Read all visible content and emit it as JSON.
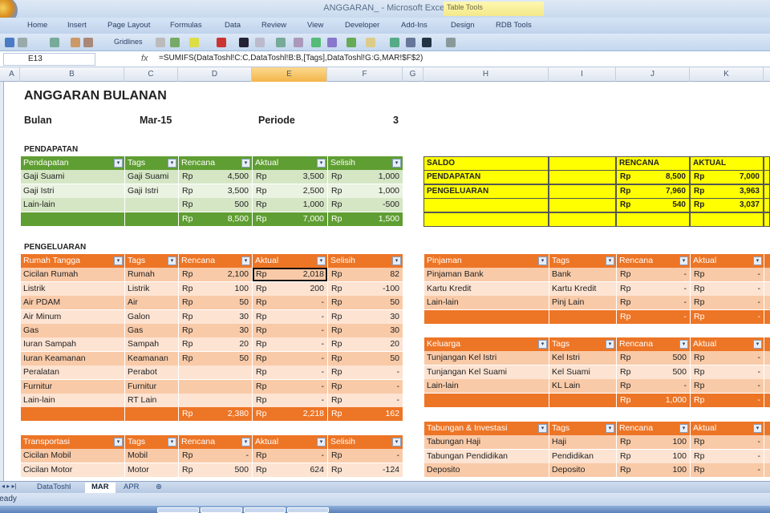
{
  "window": {
    "title": "ANGGARAN_ - Microsoft Excel",
    "contextual_tab": "Table Tools"
  },
  "ribbon_tabs": [
    "Home",
    "Insert",
    "Page Layout",
    "Formulas",
    "Data",
    "Review",
    "View",
    "Developer",
    "Add-Ins",
    "Design",
    "RDB Tools"
  ],
  "toolbar": {
    "gridlines_label": "Gridlines"
  },
  "formula_bar": {
    "name_box": "E13",
    "fx": "fx",
    "formula": "=SUMIFS(DataToshl!C:C,DataToshl!B:B,[Tags],DataToshl!G:G,MAR!$F$2)"
  },
  "columns": [
    "A",
    "B",
    "C",
    "D",
    "E",
    "F",
    "G",
    "H",
    "I",
    "J",
    "K"
  ],
  "selected_column": "E",
  "sheet": {
    "title": "ANGGARAN BULANAN",
    "bulan_label": "Bulan",
    "bulan_value": "Mar-15",
    "periode_label": "Periode",
    "periode_value": "3",
    "pendapatan_label": "PENDAPATAN",
    "pengeluaran_label": "PENGELUARAN"
  },
  "colors": {
    "green_header": "#5f9e32",
    "green_row_a": "#d5e6c5",
    "green_row_b": "#eaf3e1",
    "orange_header": "#ed7526",
    "orange_row_a": "#f9caa8",
    "orange_row_b": "#fde3d2",
    "yellow": "#ffff00"
  },
  "tables": {
    "pendapatan": {
      "headers": [
        "Pendapatan",
        "Tags",
        "Rencana",
        "Aktual",
        "Selisih"
      ],
      "rows": [
        [
          "Gaji Suami",
          "Gaji Suami",
          [
            "Rp",
            "4,500"
          ],
          [
            "Rp",
            "3,500"
          ],
          [
            "Rp",
            "1,000"
          ]
        ],
        [
          "Gaji Istri",
          "Gaji Istri",
          [
            "Rp",
            "3,500"
          ],
          [
            "Rp",
            "2,500"
          ],
          [
            "Rp",
            "1,000"
          ]
        ],
        [
          "Lain-lain",
          "",
          [
            "Rp",
            "500"
          ],
          [
            "Rp",
            "1,000"
          ],
          [
            "Rp",
            "-500"
          ]
        ]
      ],
      "total": [
        "",
        "",
        [
          "Rp",
          "8,500"
        ],
        [
          "Rp",
          "7,000"
        ],
        [
          "Rp",
          "1,500"
        ]
      ]
    },
    "rumah_tangga": {
      "headers": [
        "Rumah Tangga",
        "Tags",
        "Rencana",
        "Aktual",
        "Selisih"
      ],
      "rows": [
        [
          "Cicilan Rumah",
          "Rumah",
          [
            "Rp",
            "2,100"
          ],
          [
            "Rp",
            "2,018"
          ],
          [
            "Rp",
            "82"
          ]
        ],
        [
          "Listrik",
          "Listrik",
          [
            "Rp",
            "100"
          ],
          [
            "Rp",
            "200"
          ],
          [
            "Rp",
            "-100"
          ]
        ],
        [
          "Air PDAM",
          "Air",
          [
            "Rp",
            "50"
          ],
          [
            "Rp",
            "-"
          ],
          [
            "Rp",
            "50"
          ]
        ],
        [
          "Air Minum",
          "Galon",
          [
            "Rp",
            "30"
          ],
          [
            "Rp",
            "-"
          ],
          [
            "Rp",
            "30"
          ]
        ],
        [
          "Gas",
          "Gas",
          [
            "Rp",
            "30"
          ],
          [
            "Rp",
            "-"
          ],
          [
            "Rp",
            "30"
          ]
        ],
        [
          "Iuran Sampah",
          "Sampah",
          [
            "Rp",
            "20"
          ],
          [
            "Rp",
            "-"
          ],
          [
            "Rp",
            "20"
          ]
        ],
        [
          "Iuran Keamanan",
          "Keamanan",
          [
            "Rp",
            "50"
          ],
          [
            "Rp",
            "-"
          ],
          [
            "Rp",
            "50"
          ]
        ],
        [
          "Peralatan",
          "Perabot",
          [
            "",
            ""
          ],
          [
            "Rp",
            "-"
          ],
          [
            "Rp",
            "-"
          ]
        ],
        [
          "Furnitur",
          "Furnitur",
          [
            "",
            ""
          ],
          [
            "Rp",
            "-"
          ],
          [
            "Rp",
            "-"
          ]
        ],
        [
          "Lain-lain",
          "RT Lain",
          [
            "",
            ""
          ],
          [
            "Rp",
            "-"
          ],
          [
            "Rp",
            "-"
          ]
        ]
      ],
      "total": [
        "",
        "",
        [
          "Rp",
          "2,380"
        ],
        [
          "Rp",
          "2,218"
        ],
        [
          "Rp",
          "162"
        ]
      ]
    },
    "transportasi": {
      "headers": [
        "Transportasi",
        "Tags",
        "Rencana",
        "Aktual",
        "Selisih"
      ],
      "rows": [
        [
          "Cicilan Mobil",
          "Mobil",
          [
            "Rp",
            "-"
          ],
          [
            "Rp",
            "-"
          ],
          [
            "Rp",
            "-"
          ]
        ],
        [
          "Cicilan Motor",
          "Motor",
          [
            "Rp",
            "500"
          ],
          [
            "Rp",
            "624"
          ],
          [
            "Rp",
            "-124"
          ]
        ]
      ]
    },
    "pinjaman": {
      "headers": [
        "Pinjaman",
        "Tags",
        "Rencana",
        "Aktual"
      ],
      "rows": [
        [
          "Pinjaman Bank",
          "Bank",
          [
            "Rp",
            "-"
          ],
          [
            "Rp",
            "-"
          ]
        ],
        [
          "Kartu Kredit",
          "Kartu Kredit",
          [
            "Rp",
            "-"
          ],
          [
            "Rp",
            "-"
          ]
        ],
        [
          "Lain-lain",
          "Pinj Lain",
          [
            "Rp",
            "-"
          ],
          [
            "Rp",
            "-"
          ]
        ]
      ],
      "total": [
        "",
        "",
        [
          "Rp",
          "-"
        ],
        [
          "Rp",
          "-"
        ]
      ]
    },
    "keluarga": {
      "headers": [
        "Keluarga",
        "Tags",
        "Rencana",
        "Aktual"
      ],
      "rows": [
        [
          "Tunjangan Kel Istri",
          "Kel Istri",
          [
            "Rp",
            "500"
          ],
          [
            "Rp",
            "-"
          ]
        ],
        [
          "Tunjangan Kel Suami",
          "Kel Suami",
          [
            "Rp",
            "500"
          ],
          [
            "Rp",
            "-"
          ]
        ],
        [
          "Lain-lain",
          "KL Lain",
          [
            "Rp",
            "-"
          ],
          [
            "Rp",
            "-"
          ]
        ]
      ],
      "total": [
        "",
        "",
        [
          "Rp",
          "1,000"
        ],
        [
          "Rp",
          "-"
        ]
      ]
    },
    "tabungan": {
      "headers": [
        "Tabungan & Investasi",
        "Tags",
        "Rencana",
        "Aktual"
      ],
      "rows": [
        [
          "Tabungan Haji",
          "Haji",
          [
            "Rp",
            "100"
          ],
          [
            "Rp",
            "-"
          ]
        ],
        [
          "Tabungan Pendidikan",
          "Pendidikan",
          [
            "Rp",
            "100"
          ],
          [
            "Rp",
            "-"
          ]
        ],
        [
          "Deposito",
          "Deposito",
          [
            "Rp",
            "100"
          ],
          [
            "Rp",
            "-"
          ]
        ]
      ]
    }
  },
  "saldo": {
    "headers": [
      "SALDO",
      "",
      "RENCANA",
      "AKTUAL"
    ],
    "rows": [
      [
        "PENDAPATAN",
        "",
        [
          "Rp",
          "8,500"
        ],
        [
          "Rp",
          "7,000"
        ]
      ],
      [
        "PENGELUARAN",
        "",
        [
          "Rp",
          "7,960"
        ],
        [
          "Rp",
          "3,963"
        ]
      ],
      [
        "",
        "",
        [
          "Rp",
          "540"
        ],
        [
          "Rp",
          "3,037"
        ]
      ],
      [
        "",
        "",
        [
          "",
          ""
        ],
        [
          "",
          ""
        ]
      ]
    ]
  },
  "sheet_tabs": [
    "DataToshl",
    "MAR",
    "APR"
  ],
  "active_sheet": "MAR",
  "status": {
    "text": "Ready"
  }
}
